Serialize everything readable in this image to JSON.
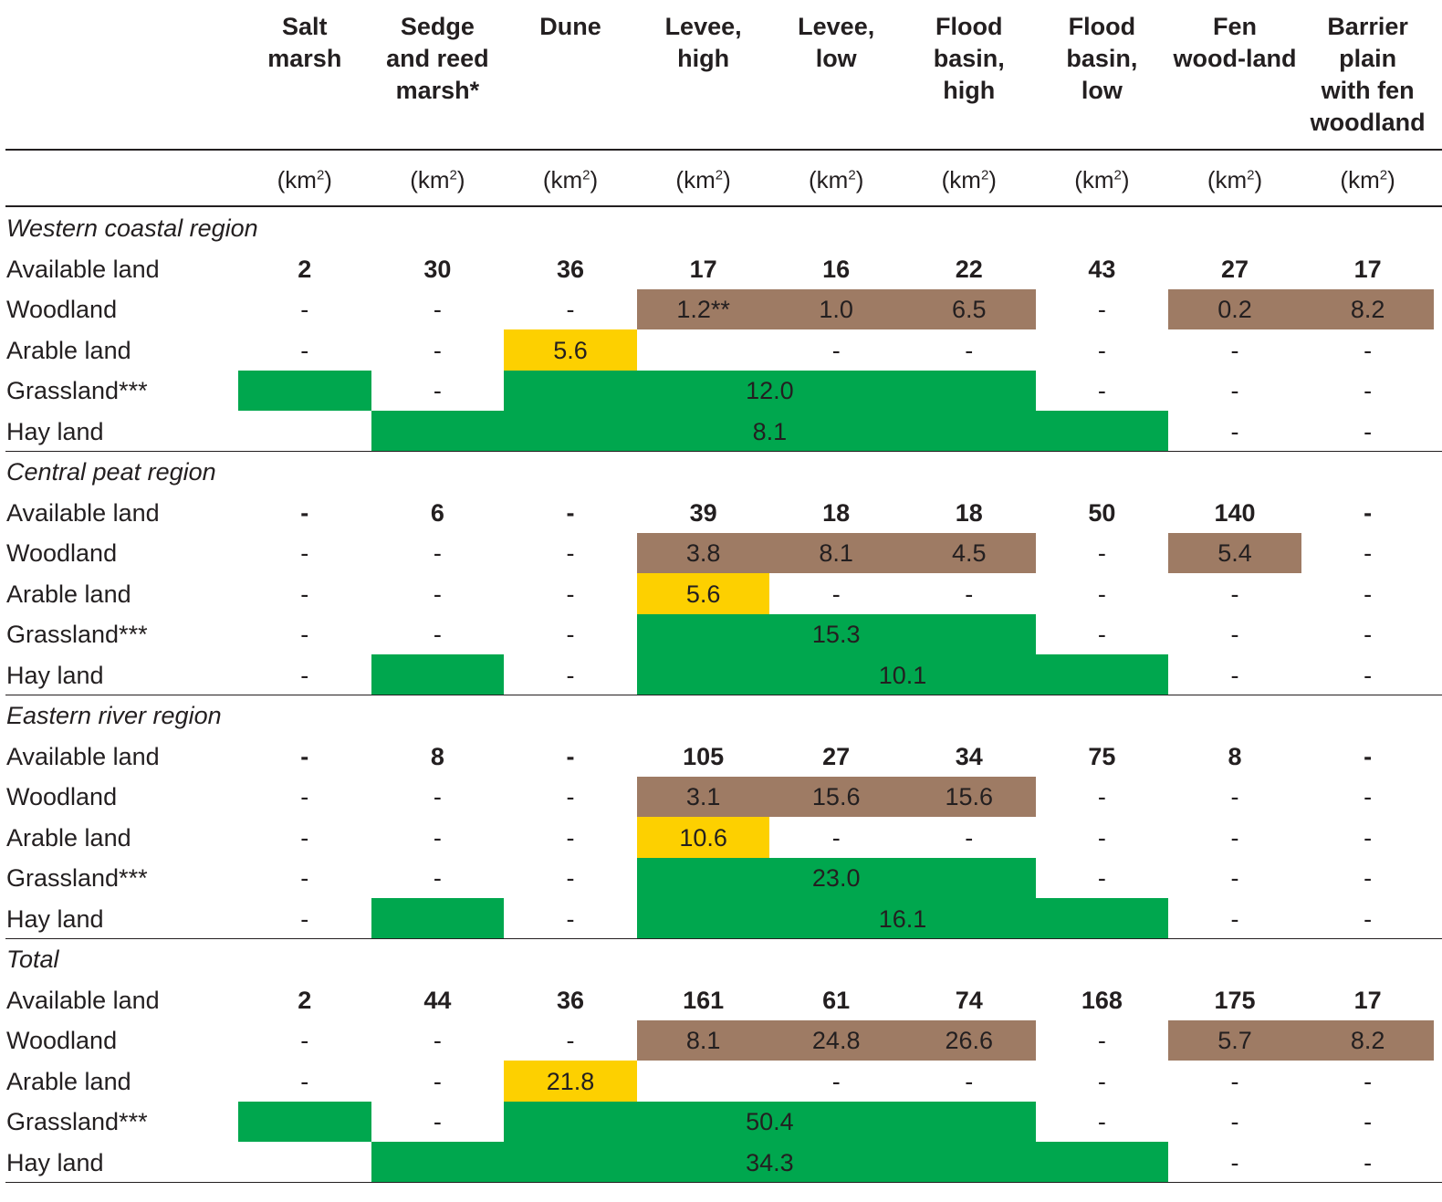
{
  "columns": [
    {
      "key": "salt_marsh",
      "label": "Salt\nmarsh",
      "unit": "(km",
      "unit_sup": "2",
      "unit_close": ")"
    },
    {
      "key": "sedge_reed",
      "label": "Sedge\nand reed\nmarsh*",
      "unit": "(km",
      "unit_sup": "2",
      "unit_close": ")"
    },
    {
      "key": "dune",
      "label": "Dune",
      "unit": "(km",
      "unit_sup": "2",
      "unit_close": ")"
    },
    {
      "key": "levee_high",
      "label": "Levee,\nhigh",
      "unit": "(km",
      "unit_sup": "2",
      "unit_close": ")"
    },
    {
      "key": "levee_low",
      "label": "Levee,\nlow",
      "unit": "(km",
      "unit_sup": "2",
      "unit_close": ")"
    },
    {
      "key": "flood_high",
      "label": "Flood\nbasin,\nhigh",
      "unit": "(km",
      "unit_sup": "2",
      "unit_close": ")"
    },
    {
      "key": "flood_low",
      "label": "Flood\nbasin,\nlow",
      "unit": "(km",
      "unit_sup": "2",
      "unit_close": ")"
    },
    {
      "key": "fen_wood",
      "label": "Fen\nwood-land",
      "unit": "(km",
      "unit_sup": "2",
      "unit_close": ")"
    },
    {
      "key": "barrier",
      "label": "Barrier\nplain\nwith fen\nwoodland",
      "unit": "(km",
      "unit_sup": "2",
      "unit_close": ")"
    }
  ],
  "colors": {
    "woodland": "#9e7b64",
    "arable": "#fdd000",
    "grass": "#00a74e"
  },
  "regions": [
    {
      "title": "Western coastal region",
      "rows": [
        {
          "label": "Available land",
          "bold": true,
          "cells": [
            "2",
            "30",
            "36",
            "17",
            "16",
            "22",
            "43",
            "27",
            "17"
          ]
        },
        {
          "label": "Woodland",
          "cells": [
            "-",
            "-",
            "-",
            "1.2**",
            "1.0",
            "6.5",
            "-",
            "0.2",
            "8.2"
          ]
        },
        {
          "label": "Arable land",
          "cells": [
            "-",
            "-",
            "5.6",
            "",
            "-",
            "-",
            "-",
            "-",
            "-"
          ]
        },
        {
          "label": "Grassland***",
          "cells": [
            "",
            "-",
            "",
            "",
            "",
            "",
            "-",
            "-",
            "-"
          ]
        },
        {
          "label": "Hay land",
          "cells": [
            "",
            "",
            "",
            "",
            "",
            "",
            "",
            "-",
            "-"
          ]
        }
      ],
      "bands": [
        {
          "row": 1,
          "from": 3,
          "to": 5,
          "color": "woodland",
          "value": ""
        },
        {
          "row": 1,
          "from": 7,
          "to": 8,
          "color": "woodland",
          "value": ""
        },
        {
          "row": 2,
          "from": 2,
          "to": 2,
          "color": "arable",
          "value": ""
        },
        {
          "row": 3,
          "from": 0,
          "to": 0,
          "color": "grass",
          "value": ""
        },
        {
          "row": 3,
          "from": 2,
          "to": 5,
          "color": "grass",
          "value": "12.0"
        },
        {
          "row": 4,
          "from": 1,
          "to": 6,
          "color": "grass",
          "value": "8.1"
        }
      ]
    },
    {
      "title": "Central peat region",
      "rows": [
        {
          "label": "Available land",
          "bold": true,
          "cells": [
            "-",
            "6",
            "-",
            "39",
            "18",
            "18",
            "50",
            "140",
            "-"
          ]
        },
        {
          "label": "Woodland",
          "cells": [
            "-",
            "-",
            "-",
            "3.8",
            "8.1",
            "4.5",
            "-",
            "5.4",
            "-"
          ]
        },
        {
          "label": "Arable land",
          "cells": [
            "-",
            "-",
            "-",
            "5.6",
            "-",
            "-",
            "-",
            "-",
            "-"
          ]
        },
        {
          "label": "Grassland***",
          "cells": [
            "-",
            "-",
            "-",
            "",
            "",
            "",
            "-",
            "-",
            "-"
          ]
        },
        {
          "label": "Hay land",
          "cells": [
            "-",
            "",
            "-",
            "",
            "",
            "",
            "",
            "-",
            "-"
          ]
        }
      ],
      "bands": [
        {
          "row": 1,
          "from": 3,
          "to": 5,
          "color": "woodland",
          "value": ""
        },
        {
          "row": 1,
          "from": 7,
          "to": 7,
          "color": "woodland",
          "value": ""
        },
        {
          "row": 2,
          "from": 3,
          "to": 3,
          "color": "arable",
          "value": ""
        },
        {
          "row": 3,
          "from": 3,
          "to": 5,
          "color": "grass",
          "value": "15.3"
        },
        {
          "row": 4,
          "from": 1,
          "to": 1,
          "color": "grass",
          "value": ""
        },
        {
          "row": 4,
          "from": 3,
          "to": 6,
          "color": "grass",
          "value": "10.1"
        }
      ]
    },
    {
      "title": "Eastern river region",
      "rows": [
        {
          "label": "Available land",
          "bold": true,
          "cells": [
            "-",
            "8",
            "-",
            "105",
            "27",
            "34",
            "75",
            "8",
            "-"
          ]
        },
        {
          "label": "Woodland",
          "cells": [
            "-",
            "-",
            "-",
            "3.1",
            "15.6",
            "15.6",
            "-",
            "-",
            "-"
          ]
        },
        {
          "label": "Arable land",
          "cells": [
            "-",
            "-",
            "-",
            "10.6",
            "-",
            "-",
            "-",
            "-",
            "-"
          ]
        },
        {
          "label": "Grassland***",
          "cells": [
            "-",
            "-",
            "-",
            "",
            "",
            "",
            "-",
            "-",
            "-"
          ]
        },
        {
          "label": "Hay land",
          "cells": [
            "-",
            "",
            "-",
            "",
            "",
            "",
            "",
            "-",
            "-"
          ]
        }
      ],
      "bands": [
        {
          "row": 1,
          "from": 3,
          "to": 5,
          "color": "woodland",
          "value": ""
        },
        {
          "row": 2,
          "from": 3,
          "to": 3,
          "color": "arable",
          "value": ""
        },
        {
          "row": 3,
          "from": 3,
          "to": 5,
          "color": "grass",
          "value": "23.0"
        },
        {
          "row": 4,
          "from": 1,
          "to": 1,
          "color": "grass",
          "value": ""
        },
        {
          "row": 4,
          "from": 3,
          "to": 6,
          "color": "grass",
          "value": "16.1"
        }
      ]
    },
    {
      "title": "Total",
      "rows": [
        {
          "label": "Available land",
          "bold": true,
          "cells": [
            "2",
            "44",
            "36",
            "161",
            "61",
            "74",
            "168",
            "175",
            "17"
          ]
        },
        {
          "label": "Woodland",
          "cells": [
            "-",
            "-",
            "-",
            "8.1",
            "24.8",
            "26.6",
            "-",
            "5.7",
            "8.2"
          ]
        },
        {
          "label": "Arable land",
          "cells": [
            "-",
            "-",
            "21.8",
            "",
            "-",
            "-",
            "-",
            "-",
            "-"
          ]
        },
        {
          "label": "Grassland***",
          "cells": [
            "",
            "-",
            "",
            "",
            "",
            "",
            "-",
            "-",
            "-"
          ]
        },
        {
          "label": "Hay land",
          "cells": [
            "",
            "",
            "",
            "",
            "",
            "",
            "",
            "-",
            "-"
          ]
        }
      ],
      "bands": [
        {
          "row": 1,
          "from": 3,
          "to": 5,
          "color": "woodland",
          "value": ""
        },
        {
          "row": 1,
          "from": 7,
          "to": 8,
          "color": "woodland",
          "value": ""
        },
        {
          "row": 2,
          "from": 2,
          "to": 2,
          "color": "arable",
          "value": ""
        },
        {
          "row": 3,
          "from": 0,
          "to": 0,
          "color": "grass",
          "value": ""
        },
        {
          "row": 3,
          "from": 2,
          "to": 5,
          "color": "grass",
          "value": "50.4"
        },
        {
          "row": 4,
          "from": 1,
          "to": 6,
          "color": "grass",
          "value": "34.3"
        }
      ]
    }
  ]
}
